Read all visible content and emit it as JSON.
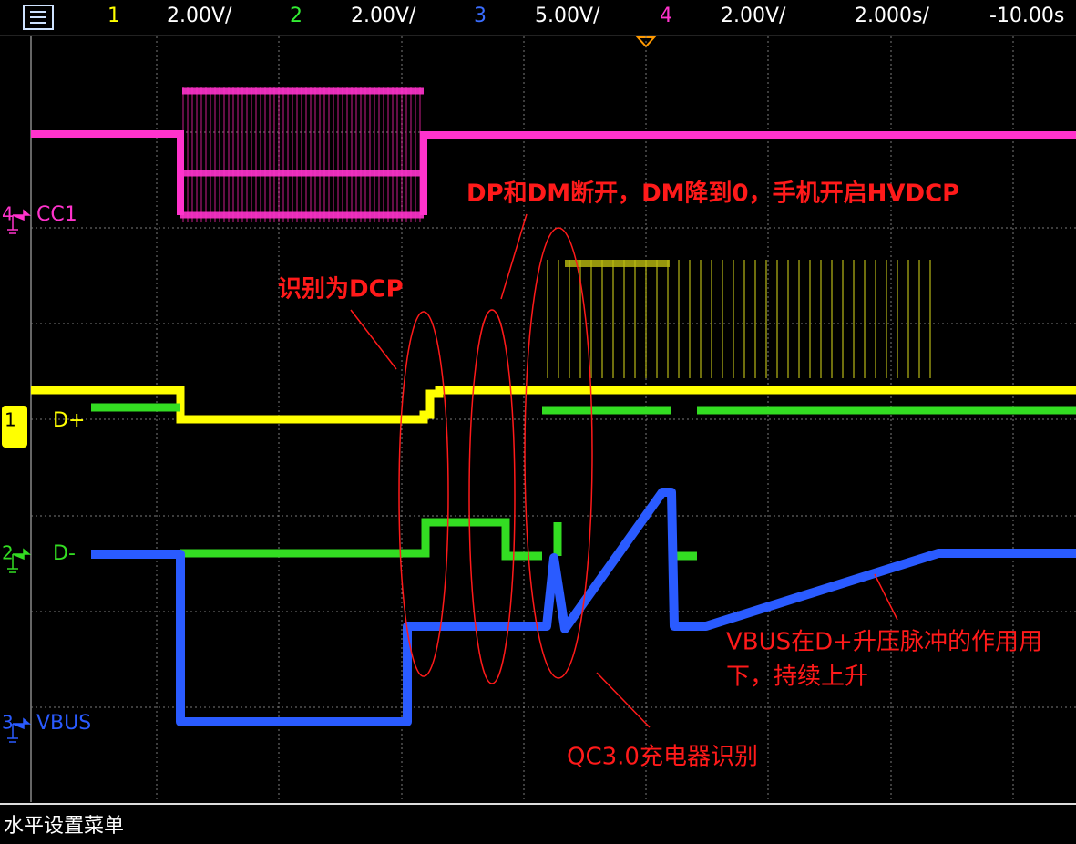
{
  "toolbar": {
    "channels": [
      {
        "number": "1",
        "scale": "2.00V/"
      },
      {
        "number": "2",
        "scale": "2.00V/"
      },
      {
        "number": "3",
        "scale": "5.00V/"
      },
      {
        "number": "4",
        "scale": "2.00V/"
      }
    ],
    "timebase": "2.000s/",
    "delay": "-10.00s"
  },
  "traces": [
    {
      "marker": "4",
      "label": "CC1"
    },
    {
      "marker": "1",
      "label": "D+"
    },
    {
      "marker": "2",
      "label": "D-"
    },
    {
      "marker": "3",
      "label": "VBUS"
    }
  ],
  "annotations": {
    "dcp": "识别为DCP",
    "hvdcp": "DP和DM断开，DM降到0，手机开启HVDCP",
    "vbus_rise": [
      "VBUS在D+升压脉冲的作用用",
      "下，持续上升"
    ],
    "qc3": "QC3.0充电器识别"
  },
  "status_bar": {
    "text": "水平设置菜单"
  }
}
